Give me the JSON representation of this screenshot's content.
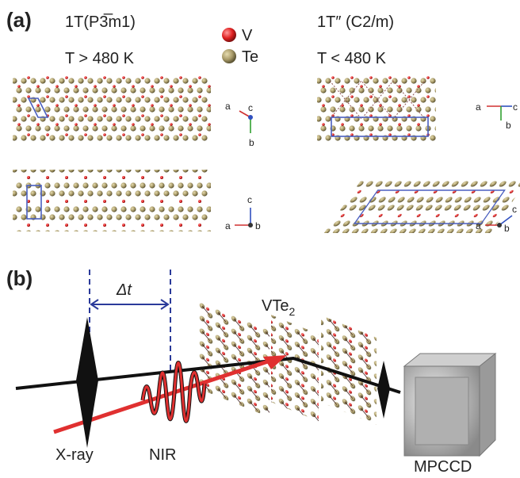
{
  "panel_a": {
    "label": "(a)",
    "legend": {
      "v": "V",
      "te": "Te"
    },
    "left": {
      "phase": "1T(P3̅m1)",
      "temperature": "T > 480 K",
      "axes_top": {
        "a": "a",
        "c": "c",
        "b": "b"
      },
      "axes_bottom": {
        "c": "c",
        "a": "a",
        "b": "b"
      }
    },
    "right": {
      "phase": "1T″ (C2/m)",
      "temperature": "T < 480 K",
      "axes_top": {
        "a": "a",
        "c": "c",
        "b": "b"
      },
      "axes_bottom": {
        "c": "c",
        "a": "a",
        "b": "b"
      }
    }
  },
  "panel_b": {
    "label": "(b)",
    "delay": "Δt",
    "sample": {
      "main": "VTe",
      "sub": "2"
    },
    "xray": "X-ray",
    "nir": "NIR",
    "detector": "MPCCD"
  }
}
